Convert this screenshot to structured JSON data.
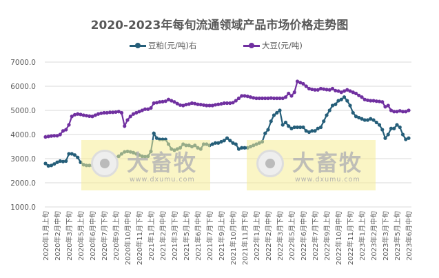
{
  "chart_data": {
    "type": "line",
    "title": "2020-2023年每旬流通领域产品市场价格走势图",
    "legend_position": "top",
    "grid": true,
    "ylim": [
      1000,
      7000
    ],
    "yticks": [
      "7000.0",
      "6000.0",
      "5000.0",
      "4000.0",
      "3000.0",
      "2000.0",
      "1000.0"
    ],
    "xtick_labels": [
      "2020年1月上旬",
      "2020年2月中旬",
      "2020年3月下旬",
      "2020年5月上旬",
      "2020年6月中旬",
      "2020年7月下旬",
      "2020年9月上旬",
      "2020年10月中旬",
      "2020年11月下旬",
      "2021年1月上旬",
      "2021年2月中旬",
      "2021年3月下旬",
      "2021年5月上旬",
      "2021年6月中旬",
      "2021年7月下旬",
      "2021年9月上旬",
      "2021年10月中旬",
      "2021年11月下旬",
      "2022年1月上旬",
      "2022年2月中旬",
      "2022年3月下旬",
      "2022年5月上旬",
      "2022年6月中旬",
      "2022年7月下旬",
      "2022年9月上旬",
      "2022年10月中旬",
      "2022年11月下旬",
      "2023年1月上旬",
      "2023年2月中旬",
      "2023年3月下旬",
      "2023年5月上旬",
      "2023年6月中旬"
    ],
    "series": [
      {
        "name": "豆粕(元/吨)右",
        "color": "#255e79",
        "values": [
          2800,
          2700,
          2720,
          2780,
          2850,
          2900,
          2880,
          2900,
          3200,
          3200,
          3150,
          3050,
          2850,
          2750,
          2720,
          2720,
          2720,
          2800,
          2900,
          3000,
          2950,
          2900,
          2900,
          3000,
          3050,
          3100,
          3200,
          3280,
          3300,
          3280,
          3250,
          3200,
          3150,
          3100,
          3080,
          3100,
          3300,
          4050,
          3850,
          3800,
          3800,
          3800,
          3600,
          3400,
          3350,
          3400,
          3450,
          3600,
          3550,
          3550,
          3500,
          3550,
          3450,
          3400,
          3600,
          3600,
          3550,
          3600,
          3650,
          3650,
          3700,
          3750,
          3850,
          3750,
          3650,
          3600,
          3400,
          3450,
          3450,
          3450,
          3500,
          3550,
          3600,
          3650,
          3700,
          4050,
          4200,
          4550,
          4800,
          4900,
          5000,
          4400,
          4500,
          4350,
          4250,
          4300,
          4300,
          4300,
          4300,
          4150,
          4100,
          4150,
          4150,
          4250,
          4300,
          4550,
          4800,
          5000,
          5200,
          5250,
          5400,
          5450,
          5550,
          5400,
          5200,
          4900,
          4750,
          4700,
          4650,
          4600,
          4600,
          4650,
          4600,
          4500,
          4400,
          4200,
          3850,
          4000,
          4250,
          4250,
          4400,
          4300,
          4000,
          3800,
          3850
        ]
      },
      {
        "name": "大豆(元/吨)",
        "color": "#7030a0",
        "values": [
          3900,
          3920,
          3940,
          3950,
          3950,
          4000,
          4150,
          4200,
          4400,
          4750,
          4820,
          4850,
          4830,
          4800,
          4780,
          4760,
          4750,
          4800,
          4850,
          4880,
          4900,
          4900,
          4920,
          4920,
          4930,
          4950,
          4900,
          4350,
          4600,
          4750,
          4850,
          4900,
          4950,
          5000,
          5050,
          5050,
          5100,
          5300,
          5320,
          5350,
          5360,
          5380,
          5450,
          5400,
          5350,
          5280,
          5220,
          5200,
          5240,
          5260,
          5300,
          5280,
          5250,
          5240,
          5220,
          5200,
          5200,
          5200,
          5230,
          5250,
          5270,
          5300,
          5300,
          5300,
          5320,
          5400,
          5500,
          5600,
          5600,
          5580,
          5550,
          5520,
          5500,
          5500,
          5500,
          5500,
          5500,
          5510,
          5500,
          5500,
          5500,
          5500,
          5550,
          5700,
          5600,
          5750,
          6200,
          6150,
          6100,
          6000,
          5900,
          5870,
          5850,
          5850,
          5900,
          5880,
          5860,
          5850,
          5900,
          5820,
          5800,
          5750,
          5800,
          5850,
          5800,
          5750,
          5700,
          5620,
          5550,
          5450,
          5420,
          5400,
          5400,
          5380,
          5370,
          5350,
          5150,
          5200,
          5000,
          4950,
          4950,
          4980,
          4950,
          4950,
          5000
        ]
      }
    ]
  },
  "watermark": {
    "brand": "大畜牧",
    "url": "www.dxumu.com"
  }
}
